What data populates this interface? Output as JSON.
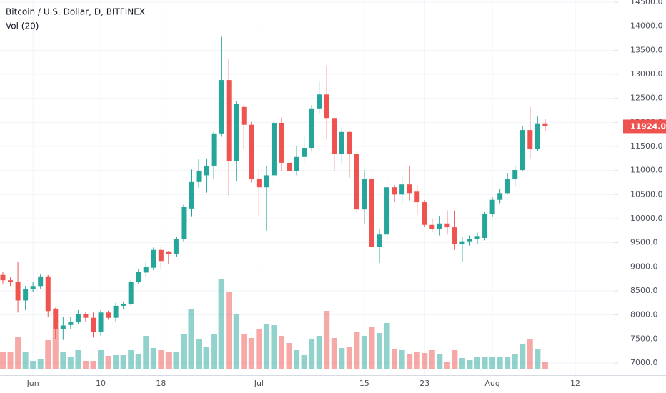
{
  "chart_data": {
    "type": "candlestick",
    "title": "Bitcoin / U.S. Dollar, D, BITFINEX",
    "subtitle": "Vol (20)",
    "up_color": "#26a69a",
    "down_color": "#ef5350",
    "grid": true,
    "categories": [
      null,
      null,
      null,
      null,
      "Jun",
      null,
      null,
      null,
      null,
      null,
      null,
      null,
      null,
      "10",
      null,
      null,
      null,
      null,
      null,
      null,
      null,
      "18",
      null,
      null,
      null,
      null,
      null,
      null,
      null,
      null,
      null,
      null,
      null,
      null,
      "Jul",
      null,
      null,
      null,
      null,
      null,
      null,
      null,
      null,
      null,
      null,
      null,
      null,
      null,
      "15",
      null,
      null,
      null,
      null,
      null,
      null,
      null,
      "23",
      null,
      null,
      null,
      null,
      null,
      null,
      null,
      null,
      "Aug",
      null,
      null,
      null,
      null,
      null,
      null,
      null,
      null,
      null,
      null,
      "12",
      null,
      null,
      null,
      null,
      null
    ],
    "open": [
      8830,
      8720,
      8680,
      8300,
      8530,
      8600,
      8800,
      8130,
      7710,
      7790,
      7860,
      8010,
      7940,
      7640,
      8050,
      7940,
      8190,
      8230,
      8680,
      8880,
      8980,
      9350,
      9320,
      9270,
      9570,
      10210,
      10760,
      10900,
      11100,
      11770,
      12880,
      11200,
      12320,
      11950,
      10830,
      10650,
      10900,
      11990,
      11160,
      10990,
      11280,
      11470,
      12290,
      12580,
      12090,
      11350,
      11800,
      11350,
      10190,
      10830,
      9420,
      9670,
      10650,
      10500,
      10710,
      10560,
      10340,
      9870,
      9790,
      9900,
      9820,
      9470,
      9530,
      9580,
      9600,
      10090,
      10390,
      10530,
      10830,
      11010,
      11840,
      11450,
      11980,
      null,
      null,
      null,
      null,
      null,
      null,
      null,
      null,
      null
    ],
    "high": [
      8900,
      8780,
      9100,
      8600,
      8680,
      8850,
      8830,
      8150,
      7950,
      7960,
      8100,
      8060,
      8050,
      8100,
      8090,
      8250,
      8280,
      8720,
      8950,
      9090,
      9400,
      9420,
      9330,
      9620,
      10290,
      11020,
      11230,
      11250,
      11800,
      13780,
      13320,
      12450,
      12370,
      12010,
      11000,
      11100,
      12050,
      12100,
      11350,
      11500,
      11700,
      12360,
      12850,
      13180,
      12100,
      11900,
      11820,
      11400,
      11010,
      11000,
      9780,
      10800,
      10700,
      10880,
      11100,
      10700,
      10380,
      10000,
      10060,
      10170,
      10170,
      9620,
      9650,
      9710,
      10150,
      10450,
      10620,
      10950,
      11100,
      11930,
      12320,
      12120,
      12080,
      null,
      null,
      null,
      null,
      null,
      null,
      null,
      null,
      null
    ],
    "low": [
      8650,
      8600,
      8050,
      8100,
      8480,
      8530,
      7950,
      7500,
      7480,
      7700,
      7800,
      7850,
      7530,
      7570,
      7900,
      7850,
      8120,
      8200,
      8650,
      8800,
      8930,
      8960,
      9050,
      9200,
      9530,
      10050,
      10640,
      10540,
      10820,
      11700,
      10480,
      10770,
      11450,
      10750,
      10050,
      9750,
      10750,
      10980,
      10800,
      10900,
      11180,
      11400,
      12170,
      11650,
      11000,
      11150,
      10850,
      10100,
      9900,
      9380,
      9080,
      9450,
      10350,
      10300,
      10380,
      10080,
      9830,
      9720,
      9650,
      9670,
      9350,
      9110,
      9440,
      9480,
      9550,
      10030,
      10320,
      10520,
      10680,
      10990,
      11250,
      11400,
      11820,
      null,
      null,
      null,
      null,
      null,
      null,
      null,
      null,
      null
    ],
    "close": [
      8720,
      8680,
      8300,
      8530,
      8600,
      8800,
      8080,
      7710,
      7780,
      7860,
      8010,
      7940,
      7640,
      8050,
      7940,
      8190,
      8230,
      8680,
      8900,
      9000,
      9350,
      9120,
      9270,
      9570,
      10240,
      10760,
      10980,
      11100,
      11770,
      12880,
      11200,
      12390,
      11950,
      10830,
      10650,
      10900,
      11990,
      11160,
      10990,
      11280,
      11470,
      12290,
      12580,
      12090,
      11350,
      11800,
      11350,
      10190,
      10830,
      9420,
      9670,
      10650,
      10500,
      10710,
      10530,
      10340,
      9870,
      9790,
      9900,
      9820,
      9470,
      9530,
      9580,
      9640,
      10090,
      10390,
      10530,
      10830,
      11010,
      11840,
      11450,
      11980,
      11924,
      null,
      null,
      null,
      null,
      null,
      null,
      null,
      null,
      null
    ],
    "volume": [
      24,
      24,
      45,
      24,
      12,
      14,
      41,
      57,
      25,
      17,
      27,
      12,
      12,
      27,
      19,
      20,
      20,
      27,
      22,
      47,
      30,
      27,
      24,
      24,
      49,
      84,
      42,
      32,
      49,
      127,
      109,
      77,
      49,
      44,
      57,
      64,
      62,
      47,
      37,
      27,
      20,
      42,
      47,
      82,
      44,
      30,
      32,
      53,
      47,
      59,
      51,
      65,
      29,
      27,
      22,
      24,
      23,
      27,
      21,
      11,
      27,
      16,
      13,
      17,
      17,
      18,
      17,
      18,
      22,
      36,
      43,
      29,
      11,
      null,
      null,
      null,
      null,
      null,
      null,
      null,
      null,
      null
    ],
    "ylim": [
      7000,
      14500
    ],
    "yticks": [
      {
        "value": 7000,
        "label": "7000.0"
      },
      {
        "value": 7500,
        "label": "7500.0"
      },
      {
        "value": 8000,
        "label": "8000.0"
      },
      {
        "value": 8500,
        "label": "8500.0"
      },
      {
        "value": 9000,
        "label": "9000.0"
      },
      {
        "value": 9500,
        "label": "9500.0"
      },
      {
        "value": 10000,
        "label": "10000.0"
      },
      {
        "value": 10500,
        "label": "10500.0"
      },
      {
        "value": 11000,
        "label": "11000.0"
      },
      {
        "value": 11500,
        "label": "11500.0"
      },
      {
        "value": 12000,
        "label": "12000.0"
      },
      {
        "value": 12500,
        "label": "12500.0"
      },
      {
        "value": 13000,
        "label": "13000.0"
      },
      {
        "value": 13500,
        "label": "13500.0"
      },
      {
        "value": 14000,
        "label": "14000.0"
      },
      {
        "value": 14500,
        "label": "14500.0"
      }
    ],
    "last_price": {
      "value": 11924,
      "label": "11924.0"
    }
  }
}
